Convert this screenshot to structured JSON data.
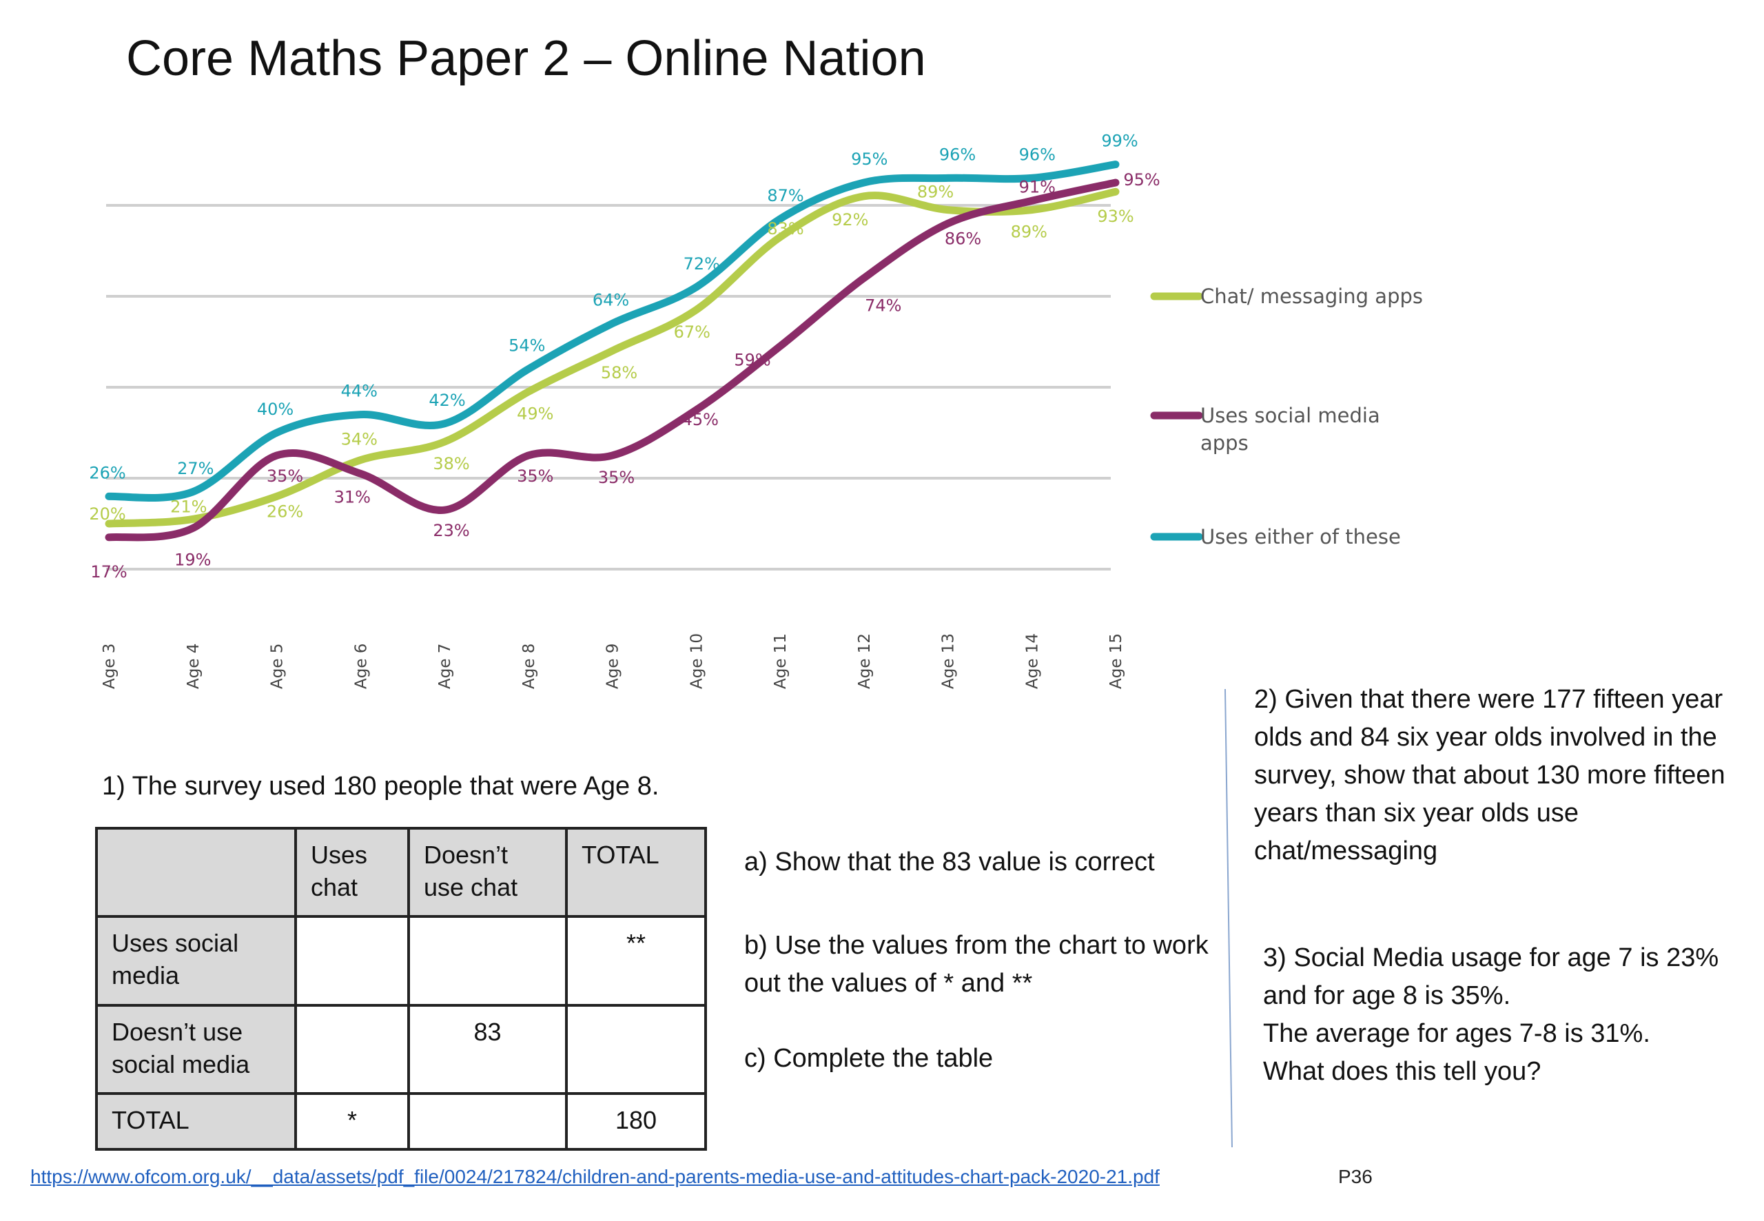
{
  "title": "Core Maths Paper 2 – Online Nation",
  "chart_data": {
    "type": "line",
    "categories": [
      "Age 3",
      "Age 4",
      "Age 5",
      "Age 6",
      "Age 7",
      "Age 8",
      "Age 9",
      "Age 10",
      "Age 11",
      "Age 12",
      "Age 13",
      "Age 14",
      "Age 15"
    ],
    "ylim": [
      10,
      100
    ],
    "grid": true,
    "legend_position": "right",
    "series": [
      {
        "name": "Chat/ messaging apps",
        "color": "#b5cc4a",
        "values": [
          20,
          21,
          26,
          34,
          38,
          49,
          58,
          67,
          83,
          92,
          89,
          89,
          93
        ]
      },
      {
        "name": "Uses social media apps",
        "color": "#8a2c68",
        "values": [
          17,
          19,
          35,
          31,
          23,
          35,
          35,
          45,
          59,
          74,
          86,
          91,
          95
        ]
      },
      {
        "name": "Uses either of these",
        "color": "#1ca3b5",
        "values": [
          26,
          27,
          40,
          44,
          42,
          54,
          64,
          72,
          87,
          95,
          96,
          96,
          99
        ]
      }
    ]
  },
  "q1": {
    "intro": "1) The survey used 180 people that were Age 8.",
    "table": {
      "header": [
        "",
        "Uses chat",
        "Doesn’t use chat",
        "TOTAL"
      ],
      "rows": [
        [
          "Uses social media",
          "",
          "",
          "**"
        ],
        [
          "Doesn’t use social media",
          "",
          "83",
          ""
        ],
        [
          "TOTAL",
          "*",
          "",
          "180"
        ]
      ]
    },
    "a": "a) Show that the 83 value is correct",
    "b": "b) Use the values from the chart to work out the values of * and **",
    "c": "c) Complete the table"
  },
  "q2": "2) Given that there were 177 fifteen year olds and 84 six year olds involved in the survey, show that about 130 more fifteen years than six year olds use chat/messaging",
  "q3": {
    "line1": "3) Social Media usage for age 7 is 23% and for age 8 is 35%.",
    "line2": "The average for ages 7-8 is 31%.",
    "line3": "What does this tell you?"
  },
  "source_link": "https://www.ofcom.org.uk/__data/assets/pdf_file/0024/217824/children-and-parents-media-use-and-attitudes-chart-pack-2020-21.pdf",
  "page_ref": "P36"
}
